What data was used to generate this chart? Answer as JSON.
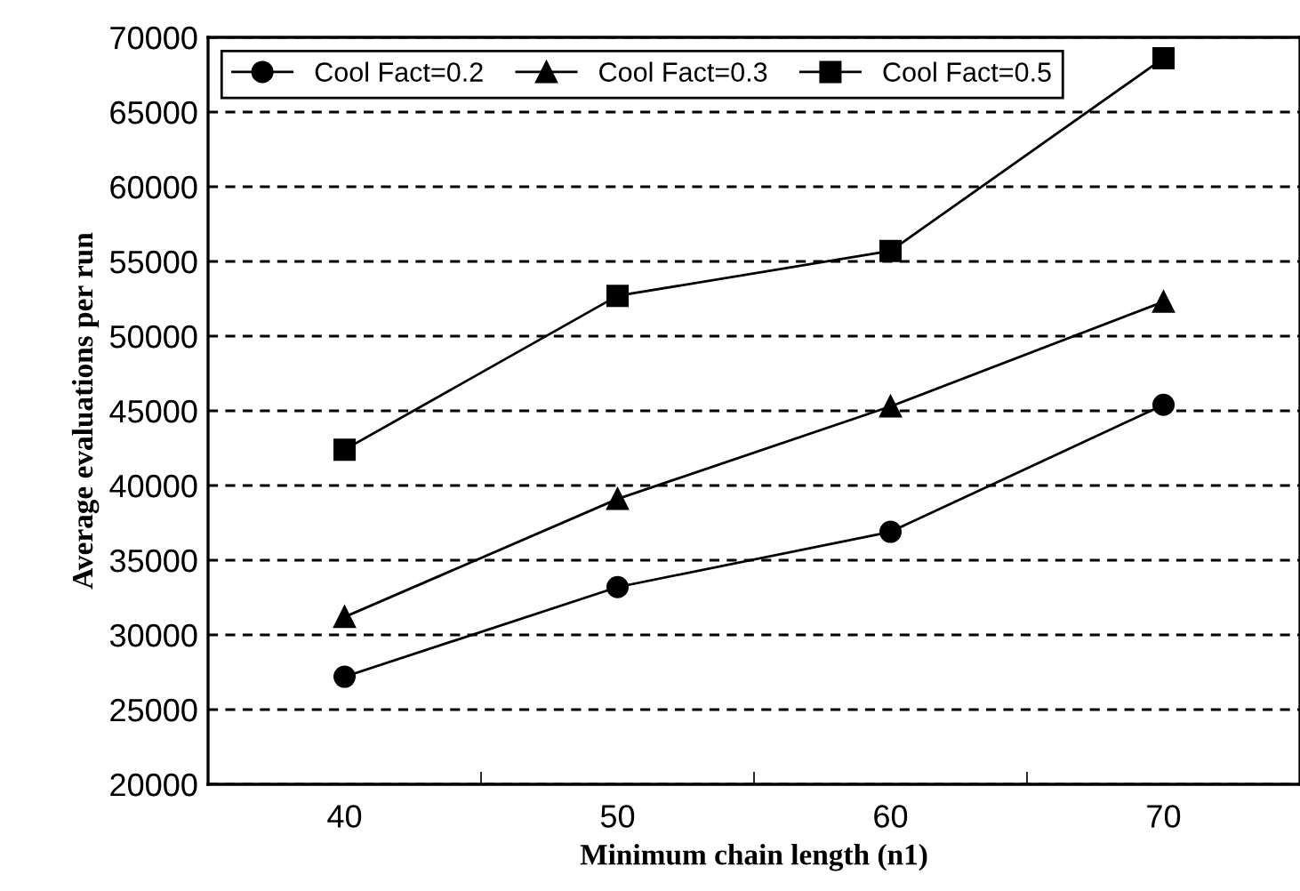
{
  "chart_data": {
    "type": "line",
    "xlabel": "Minimum chain length (n1)",
    "ylabel": "Average evaluations per run",
    "x": [
      40,
      50,
      60,
      70
    ],
    "series": [
      {
        "name": "Cool Fact=0.2",
        "color": "#000000",
        "marker": "circle",
        "values": [
          27200,
          33200,
          36900,
          45400
        ]
      },
      {
        "name": "Cool Fact=0.3",
        "color": "#000000",
        "marker": "triangle",
        "values": [
          31200,
          39100,
          45300,
          52300
        ]
      },
      {
        "name": "Cool Fact=0.5",
        "color": "#000000",
        "marker": "square",
        "values": [
          42400,
          52700,
          55700,
          68600
        ]
      }
    ],
    "xlim": [
      35,
      75
    ],
    "xticks": [
      40,
      {
        "value": 45,
        "label": null
      },
      50,
      {
        "value": 55,
        "label": null
      },
      60,
      {
        "value": 65,
        "label": null
      },
      70
    ],
    "ylim": [
      20000,
      70000
    ],
    "yticks": [
      20000,
      25000,
      30000,
      35000,
      40000,
      45000,
      50000,
      55000,
      60000,
      65000,
      70000
    ],
    "grid": "y",
    "legend": "top left",
    "line_style": "solid"
  }
}
